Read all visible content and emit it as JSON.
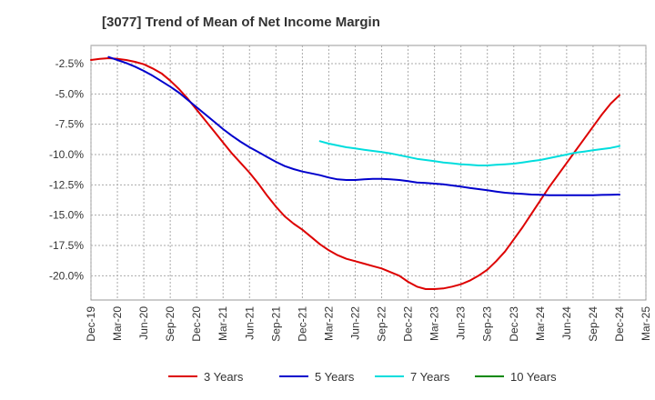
{
  "chart_data": {
    "type": "line",
    "title": "[3077]  Trend of Mean of Net Income Margin",
    "xlabel": "",
    "ylabel": "",
    "x": [
      "Dec-19",
      "Mar-20",
      "Jun-20",
      "Sep-20",
      "Dec-20",
      "Mar-21",
      "Jun-21",
      "Sep-21",
      "Dec-21",
      "Mar-22",
      "Jun-22",
      "Sep-22",
      "Dec-22",
      "Mar-23",
      "Jun-23",
      "Sep-23",
      "Dec-23",
      "Mar-24",
      "Jun-24",
      "Sep-24",
      "Dec-24",
      "Mar-25"
    ],
    "xlim": [
      "Dec-19",
      "Mar-25"
    ],
    "ylim": [
      -22.0,
      -1.0
    ],
    "yticks": [
      -2.5,
      -5.0,
      -7.5,
      -10.0,
      -12.5,
      -15.0,
      -17.5,
      -20.0
    ],
    "ytick_labels": [
      "-2.5%",
      "-5.0%",
      "-7.5%",
      "-10.0%",
      "-12.5%",
      "-15.0%",
      "-17.5%",
      "-20.0%"
    ],
    "grid": true,
    "legend_position": "bottom",
    "series": [
      {
        "name": "3 Years",
        "color": "#dd0000",
        "points": [
          [
            "Dec-19",
            -2.2
          ],
          [
            "Jan-20",
            -2.1
          ],
          [
            "Feb-20",
            -2.05
          ],
          [
            "Mar-20",
            -2.1
          ],
          [
            "Apr-20",
            -2.2
          ],
          [
            "May-20",
            -2.35
          ],
          [
            "Jun-20",
            -2.55
          ],
          [
            "Jul-20",
            -2.9
          ],
          [
            "Aug-20",
            -3.3
          ],
          [
            "Sep-20",
            -3.9
          ],
          [
            "Oct-20",
            -4.6
          ],
          [
            "Nov-20",
            -5.4
          ],
          [
            "Dec-20",
            -6.3
          ],
          [
            "Jan-21",
            -7.2
          ],
          [
            "Feb-21",
            -8.1
          ],
          [
            "Mar-21",
            -9.0
          ],
          [
            "Apr-21",
            -9.9
          ],
          [
            "May-21",
            -10.7
          ],
          [
            "Jun-21",
            -11.5
          ],
          [
            "Jul-21",
            -12.4
          ],
          [
            "Aug-21",
            -13.4
          ],
          [
            "Sep-21",
            -14.3
          ],
          [
            "Oct-21",
            -15.1
          ],
          [
            "Nov-21",
            -15.7
          ],
          [
            "Dec-21",
            -16.2
          ],
          [
            "Jan-22",
            -16.8
          ],
          [
            "Feb-22",
            -17.4
          ],
          [
            "Mar-22",
            -17.9
          ],
          [
            "Apr-22",
            -18.3
          ],
          [
            "May-22",
            -18.6
          ],
          [
            "Jun-22",
            -18.8
          ],
          [
            "Jul-22",
            -19.0
          ],
          [
            "Aug-22",
            -19.2
          ],
          [
            "Sep-22",
            -19.4
          ],
          [
            "Oct-22",
            -19.7
          ],
          [
            "Nov-22",
            -20.0
          ],
          [
            "Dec-22",
            -20.5
          ],
          [
            "Jan-23",
            -20.9
          ],
          [
            "Feb-23",
            -21.1
          ],
          [
            "Mar-23",
            -21.1
          ],
          [
            "Apr-23",
            -21.05
          ],
          [
            "May-23",
            -20.9
          ],
          [
            "Jun-23",
            -20.7
          ],
          [
            "Jul-23",
            -20.4
          ],
          [
            "Aug-23",
            -20.0
          ],
          [
            "Sep-23",
            -19.5
          ],
          [
            "Oct-23",
            -18.8
          ],
          [
            "Nov-23",
            -18.0
          ],
          [
            "Dec-23",
            -17.0
          ],
          [
            "Jan-24",
            -16.0
          ],
          [
            "Feb-24",
            -14.9
          ],
          [
            "Mar-24",
            -13.8
          ],
          [
            "Apr-24",
            -12.7
          ],
          [
            "May-24",
            -11.7
          ],
          [
            "Jun-24",
            -10.7
          ],
          [
            "Jul-24",
            -9.7
          ],
          [
            "Aug-24",
            -8.7
          ],
          [
            "Sep-24",
            -7.7
          ],
          [
            "Oct-24",
            -6.7
          ],
          [
            "Nov-24",
            -5.8
          ],
          [
            "Dec-24",
            -5.1
          ]
        ]
      },
      {
        "name": "5 Years",
        "color": "#0000cc",
        "points": [
          [
            "Feb-20",
            -1.95
          ],
          [
            "Mar-20",
            -2.2
          ],
          [
            "Apr-20",
            -2.45
          ],
          [
            "May-20",
            -2.75
          ],
          [
            "Jun-20",
            -3.1
          ],
          [
            "Jul-20",
            -3.5
          ],
          [
            "Aug-20",
            -3.95
          ],
          [
            "Sep-20",
            -4.4
          ],
          [
            "Oct-20",
            -4.9
          ],
          [
            "Nov-20",
            -5.5
          ],
          [
            "Dec-20",
            -6.1
          ],
          [
            "Jan-21",
            -6.7
          ],
          [
            "Feb-21",
            -7.3
          ],
          [
            "Mar-21",
            -7.9
          ],
          [
            "Apr-21",
            -8.45
          ],
          [
            "May-21",
            -8.95
          ],
          [
            "Jun-21",
            -9.4
          ],
          [
            "Jul-21",
            -9.8
          ],
          [
            "Aug-21",
            -10.2
          ],
          [
            "Sep-21",
            -10.6
          ],
          [
            "Oct-21",
            -10.95
          ],
          [
            "Nov-21",
            -11.2
          ],
          [
            "Dec-21",
            -11.4
          ],
          [
            "Jan-22",
            -11.55
          ],
          [
            "Feb-22",
            -11.7
          ],
          [
            "Mar-22",
            -11.9
          ],
          [
            "Apr-22",
            -12.05
          ],
          [
            "May-22",
            -12.1
          ],
          [
            "Jun-22",
            -12.1
          ],
          [
            "Jul-22",
            -12.05
          ],
          [
            "Aug-22",
            -12.0
          ],
          [
            "Sep-22",
            -12.0
          ],
          [
            "Oct-22",
            -12.05
          ],
          [
            "Nov-22",
            -12.1
          ],
          [
            "Dec-22",
            -12.2
          ],
          [
            "Jan-23",
            -12.3
          ],
          [
            "Feb-23",
            -12.35
          ],
          [
            "Mar-23",
            -12.4
          ],
          [
            "Apr-23",
            -12.45
          ],
          [
            "May-23",
            -12.55
          ],
          [
            "Jun-23",
            -12.65
          ],
          [
            "Jul-23",
            -12.75
          ],
          [
            "Aug-23",
            -12.85
          ],
          [
            "Sep-23",
            -12.95
          ],
          [
            "Oct-23",
            -13.05
          ],
          [
            "Nov-23",
            -13.15
          ],
          [
            "Dec-23",
            -13.2
          ],
          [
            "Jan-24",
            -13.25
          ],
          [
            "Feb-24",
            -13.3
          ],
          [
            "Mar-24",
            -13.32
          ],
          [
            "Apr-24",
            -13.35
          ],
          [
            "May-24",
            -13.35
          ],
          [
            "Jun-24",
            -13.35
          ],
          [
            "Jul-24",
            -13.35
          ],
          [
            "Aug-24",
            -13.35
          ],
          [
            "Sep-24",
            -13.35
          ],
          [
            "Oct-24",
            -13.33
          ],
          [
            "Nov-24",
            -13.32
          ],
          [
            "Dec-24",
            -13.3
          ]
        ]
      },
      {
        "name": "7 Years",
        "color": "#00dddd",
        "points": [
          [
            "Feb-22",
            -8.9
          ],
          [
            "Mar-22",
            -9.1
          ],
          [
            "Apr-22",
            -9.25
          ],
          [
            "May-22",
            -9.4
          ],
          [
            "Jun-22",
            -9.5
          ],
          [
            "Jul-22",
            -9.6
          ],
          [
            "Aug-22",
            -9.7
          ],
          [
            "Sep-22",
            -9.8
          ],
          [
            "Oct-22",
            -9.9
          ],
          [
            "Nov-22",
            -10.05
          ],
          [
            "Dec-22",
            -10.2
          ],
          [
            "Jan-23",
            -10.35
          ],
          [
            "Feb-23",
            -10.45
          ],
          [
            "Mar-23",
            -10.55
          ],
          [
            "Apr-23",
            -10.65
          ],
          [
            "May-23",
            -10.72
          ],
          [
            "Jun-23",
            -10.8
          ],
          [
            "Jul-23",
            -10.85
          ],
          [
            "Aug-23",
            -10.9
          ],
          [
            "Sep-23",
            -10.9
          ],
          [
            "Oct-23",
            -10.85
          ],
          [
            "Nov-23",
            -10.8
          ],
          [
            "Dec-23",
            -10.75
          ],
          [
            "Jan-24",
            -10.65
          ],
          [
            "Feb-24",
            -10.55
          ],
          [
            "Mar-24",
            -10.45
          ],
          [
            "Apr-24",
            -10.3
          ],
          [
            "May-24",
            -10.15
          ],
          [
            "Jun-24",
            -10.0
          ],
          [
            "Jul-24",
            -9.85
          ],
          [
            "Aug-24",
            -9.75
          ],
          [
            "Sep-24",
            -9.65
          ],
          [
            "Oct-24",
            -9.55
          ],
          [
            "Nov-24",
            -9.45
          ],
          [
            "Dec-24",
            -9.3
          ]
        ]
      },
      {
        "name": "10 Years",
        "color": "#008800",
        "points": []
      }
    ]
  }
}
